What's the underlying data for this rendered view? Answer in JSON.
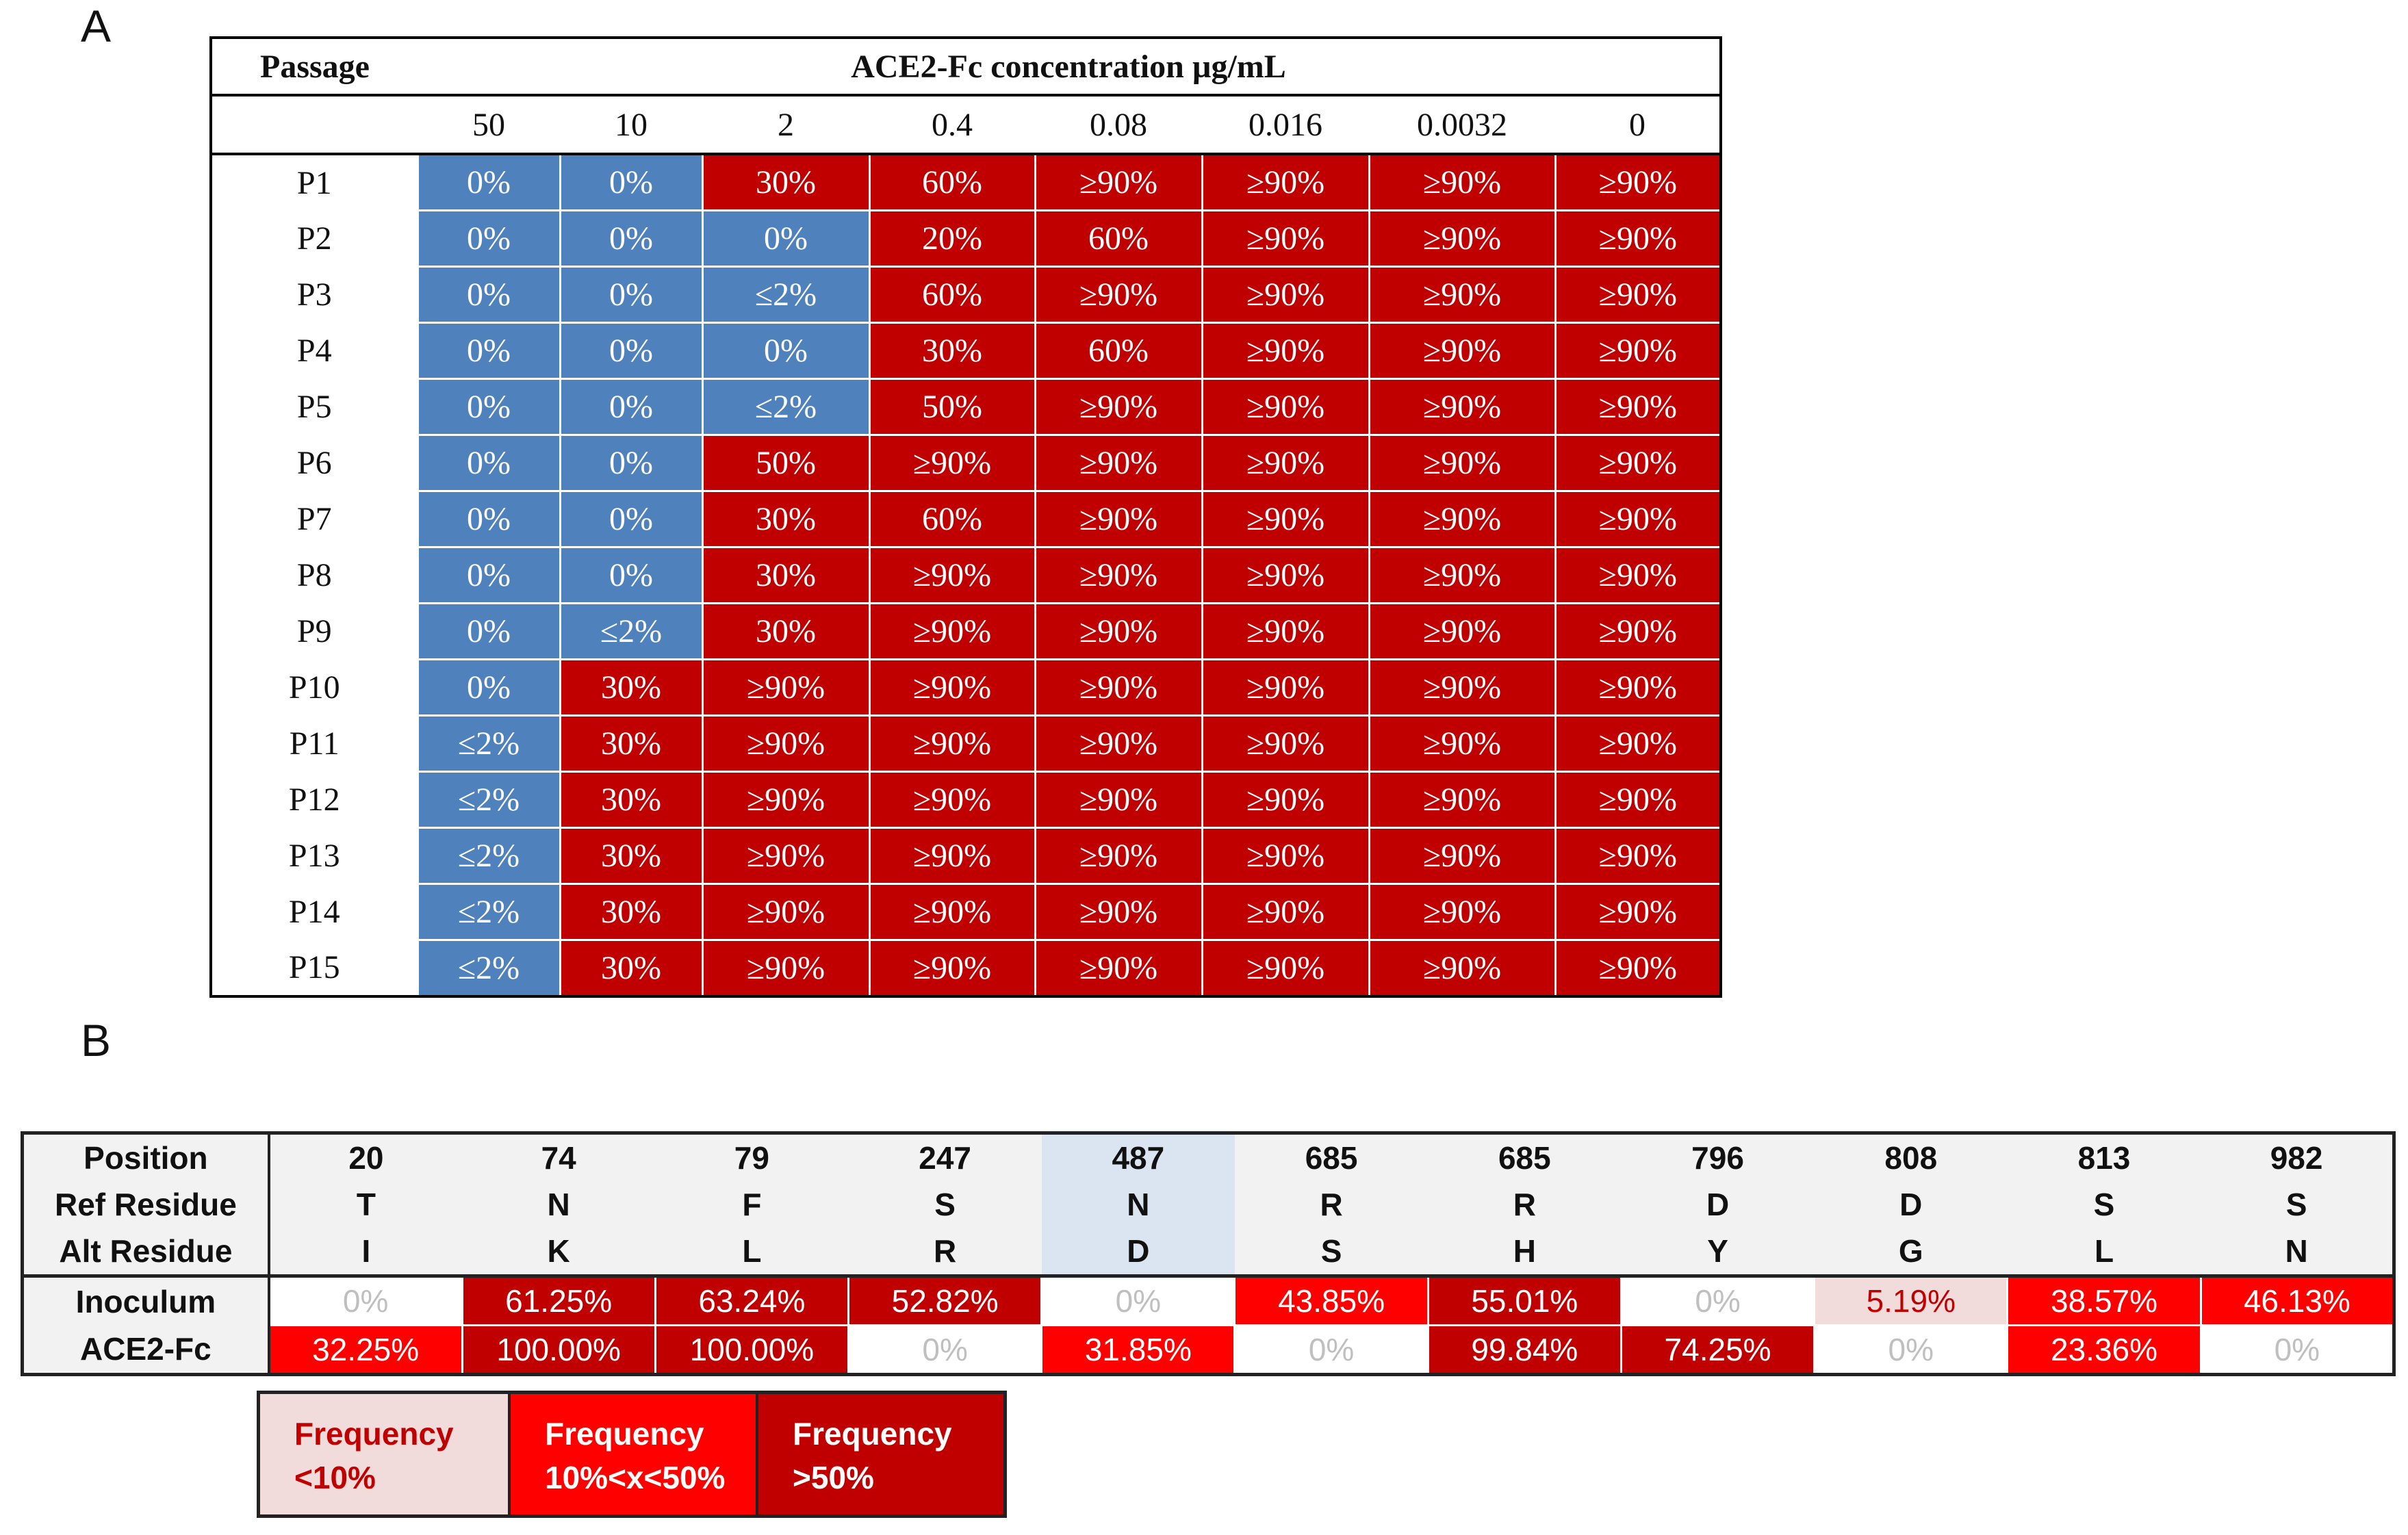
{
  "panel_a": {
    "label": "A",
    "header_passage": "Passage",
    "header_title": "ACE2-Fc concentration µg/mL",
    "concentrations": [
      "50",
      "10",
      "2",
      "0.4",
      "0.08",
      "0.016",
      "0.0032",
      "0"
    ],
    "rows": [
      {
        "passage": "P1",
        "cells": [
          "0%",
          "0%",
          "30%",
          "60%",
          "≥90%",
          "≥90%",
          "≥90%",
          "≥90%"
        ],
        "status": [
          "b",
          "b",
          "r",
          "r",
          "r",
          "r",
          "r",
          "r"
        ]
      },
      {
        "passage": "P2",
        "cells": [
          "0%",
          "0%",
          "0%",
          "20%",
          "60%",
          "≥90%",
          "≥90%",
          "≥90%"
        ],
        "status": [
          "b",
          "b",
          "b",
          "r",
          "r",
          "r",
          "r",
          "r"
        ]
      },
      {
        "passage": "P3",
        "cells": [
          "0%",
          "0%",
          "≤2%",
          "60%",
          "≥90%",
          "≥90%",
          "≥90%",
          "≥90%"
        ],
        "status": [
          "b",
          "b",
          "b",
          "r",
          "r",
          "r",
          "r",
          "r"
        ]
      },
      {
        "passage": "P4",
        "cells": [
          "0%",
          "0%",
          "0%",
          "30%",
          "60%",
          "≥90%",
          "≥90%",
          "≥90%"
        ],
        "status": [
          "b",
          "b",
          "b",
          "r",
          "r",
          "r",
          "r",
          "r"
        ]
      },
      {
        "passage": "P5",
        "cells": [
          "0%",
          "0%",
          "≤2%",
          "50%",
          "≥90%",
          "≥90%",
          "≥90%",
          "≥90%"
        ],
        "status": [
          "b",
          "b",
          "b",
          "r",
          "r",
          "r",
          "r",
          "r"
        ]
      },
      {
        "passage": "P6",
        "cells": [
          "0%",
          "0%",
          "50%",
          "≥90%",
          "≥90%",
          "≥90%",
          "≥90%",
          "≥90%"
        ],
        "status": [
          "b",
          "b",
          "r",
          "r",
          "r",
          "r",
          "r",
          "r"
        ]
      },
      {
        "passage": "P7",
        "cells": [
          "0%",
          "0%",
          "30%",
          "60%",
          "≥90%",
          "≥90%",
          "≥90%",
          "≥90%"
        ],
        "status": [
          "b",
          "b",
          "r",
          "r",
          "r",
          "r",
          "r",
          "r"
        ]
      },
      {
        "passage": "P8",
        "cells": [
          "0%",
          "0%",
          "30%",
          "≥90%",
          "≥90%",
          "≥90%",
          "≥90%",
          "≥90%"
        ],
        "status": [
          "b",
          "b",
          "r",
          "r",
          "r",
          "r",
          "r",
          "r"
        ]
      },
      {
        "passage": "P9",
        "cells": [
          "0%",
          "≤2%",
          "30%",
          "≥90%",
          "≥90%",
          "≥90%",
          "≥90%",
          "≥90%"
        ],
        "status": [
          "b",
          "b",
          "r",
          "r",
          "r",
          "r",
          "r",
          "r"
        ]
      },
      {
        "passage": "P10",
        "cells": [
          "0%",
          "30%",
          "≥90%",
          "≥90%",
          "≥90%",
          "≥90%",
          "≥90%",
          "≥90%"
        ],
        "status": [
          "b",
          "r",
          "r",
          "r",
          "r",
          "r",
          "r",
          "r"
        ]
      },
      {
        "passage": "P11",
        "cells": [
          "≤2%",
          "30%",
          "≥90%",
          "≥90%",
          "≥90%",
          "≥90%",
          "≥90%",
          "≥90%"
        ],
        "status": [
          "b",
          "r",
          "r",
          "r",
          "r",
          "r",
          "r",
          "r"
        ]
      },
      {
        "passage": "P12",
        "cells": [
          "≤2%",
          "30%",
          "≥90%",
          "≥90%",
          "≥90%",
          "≥90%",
          "≥90%",
          "≥90%"
        ],
        "status": [
          "b",
          "r",
          "r",
          "r",
          "r",
          "r",
          "r",
          "r"
        ]
      },
      {
        "passage": "P13",
        "cells": [
          "≤2%",
          "30%",
          "≥90%",
          "≥90%",
          "≥90%",
          "≥90%",
          "≥90%",
          "≥90%"
        ],
        "status": [
          "b",
          "r",
          "r",
          "r",
          "r",
          "r",
          "r",
          "r"
        ]
      },
      {
        "passage": "P14",
        "cells": [
          "≤2%",
          "30%",
          "≥90%",
          "≥90%",
          "≥90%",
          "≥90%",
          "≥90%",
          "≥90%"
        ],
        "status": [
          "b",
          "r",
          "r",
          "r",
          "r",
          "r",
          "r",
          "r"
        ]
      },
      {
        "passage": "P15",
        "cells": [
          "≤2%",
          "30%",
          "≥90%",
          "≥90%",
          "≥90%",
          "≥90%",
          "≥90%",
          "≥90%"
        ],
        "status": [
          "b",
          "r",
          "r",
          "r",
          "r",
          "r",
          "r",
          "r"
        ]
      }
    ],
    "colors": {
      "blue": "#4f81bd",
      "red": "#c00000"
    }
  },
  "panel_b": {
    "label": "B",
    "row_labels": {
      "position": "Position",
      "ref": "Ref Residue",
      "alt": "Alt Residue",
      "inoculum": "Inoculum",
      "ace2fc": "ACE2-Fc"
    },
    "columns": [
      {
        "position": "20",
        "ref": "T",
        "alt": "I",
        "inoculum": "0%",
        "inoculum_level": "f0",
        "ace2fc": "32.25%",
        "ace2fc_level": "fmid"
      },
      {
        "position": "74",
        "ref": "N",
        "alt": "K",
        "inoculum": "61.25%",
        "inoculum_level": "fhigh",
        "ace2fc": "100.00%",
        "ace2fc_level": "fhigh"
      },
      {
        "position": "79",
        "ref": "F",
        "alt": "L",
        "inoculum": "63.24%",
        "inoculum_level": "fhigh",
        "ace2fc": "100.00%",
        "ace2fc_level": "fhigh"
      },
      {
        "position": "247",
        "ref": "S",
        "alt": "R",
        "inoculum": "52.82%",
        "inoculum_level": "fhigh",
        "ace2fc": "0%",
        "ace2fc_level": "f0"
      },
      {
        "position": "487",
        "ref": "N",
        "alt": "D",
        "inoculum": "0%",
        "inoculum_level": "f0",
        "ace2fc": "31.85%",
        "ace2fc_level": "fmid",
        "highlight": true
      },
      {
        "position": "685",
        "ref": "R",
        "alt": "S",
        "inoculum": "43.85%",
        "inoculum_level": "fmid",
        "ace2fc": "0%",
        "ace2fc_level": "f0"
      },
      {
        "position": "685",
        "ref": "R",
        "alt": "H",
        "inoculum": "55.01%",
        "inoculum_level": "fhigh",
        "ace2fc": "99.84%",
        "ace2fc_level": "fhigh"
      },
      {
        "position": "796",
        "ref": "D",
        "alt": "Y",
        "inoculum": "0%",
        "inoculum_level": "f0",
        "ace2fc": "74.25%",
        "ace2fc_level": "fhigh"
      },
      {
        "position": "808",
        "ref": "D",
        "alt": "G",
        "inoculum": "5.19%",
        "inoculum_level": "flow",
        "ace2fc": "0%",
        "ace2fc_level": "f0"
      },
      {
        "position": "813",
        "ref": "S",
        "alt": "L",
        "inoculum": "38.57%",
        "inoculum_level": "fmid",
        "ace2fc": "23.36%",
        "ace2fc_level": "fmid"
      },
      {
        "position": "982",
        "ref": "S",
        "alt": "N",
        "inoculum": "46.13%",
        "inoculum_level": "fmid",
        "ace2fc": "0%",
        "ace2fc_level": "f0"
      }
    ],
    "legend": [
      {
        "line1": "Frequency",
        "line2": "<10%",
        "level": "low"
      },
      {
        "line1": "Frequency",
        "line2": "10%<x<50%",
        "level": "mid"
      },
      {
        "line1": "Frequency",
        "line2": ">50%",
        "level": "high"
      }
    ],
    "colors": {
      "low": "#f2dcdb",
      "mid": "#ff0000",
      "high": "#c00000",
      "highlight": "#dbe5f1"
    }
  }
}
